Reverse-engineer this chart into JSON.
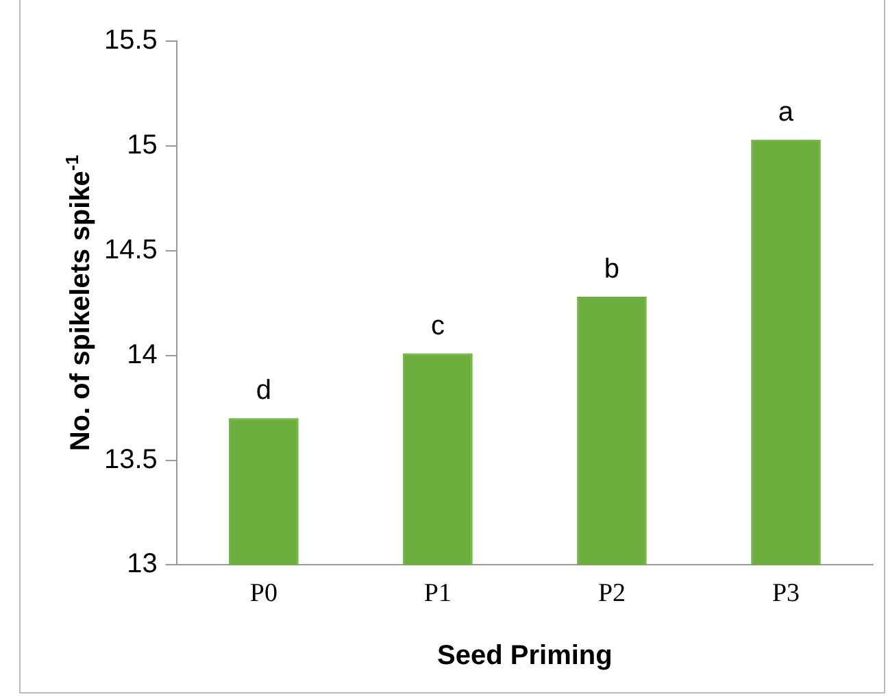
{
  "chart_data": {
    "type": "bar",
    "xlabel": "Seed Priming",
    "ylabel": "No. of spikelets spike$^{-1}$",
    "categories": [
      "P0",
      "P1",
      "P2",
      "P3"
    ],
    "values": [
      13.7,
      14.01,
      14.28,
      15.03
    ],
    "color": "#6dae3f",
    "ylim": [
      13,
      15.5
    ],
    "yticks": [
      13,
      13.5,
      14,
      14.5,
      15,
      15.5
    ],
    "grid": false,
    "legend": false,
    "annotations": [
      {
        "text": "d",
        "x": "P0",
        "y": 13.7
      },
      {
        "text": "c",
        "x": "P1",
        "y": 14.01
      },
      {
        "text": "b",
        "x": "P2",
        "y": 14.28
      },
      {
        "text": "a",
        "x": "P3",
        "y": 15.03
      }
    ]
  }
}
